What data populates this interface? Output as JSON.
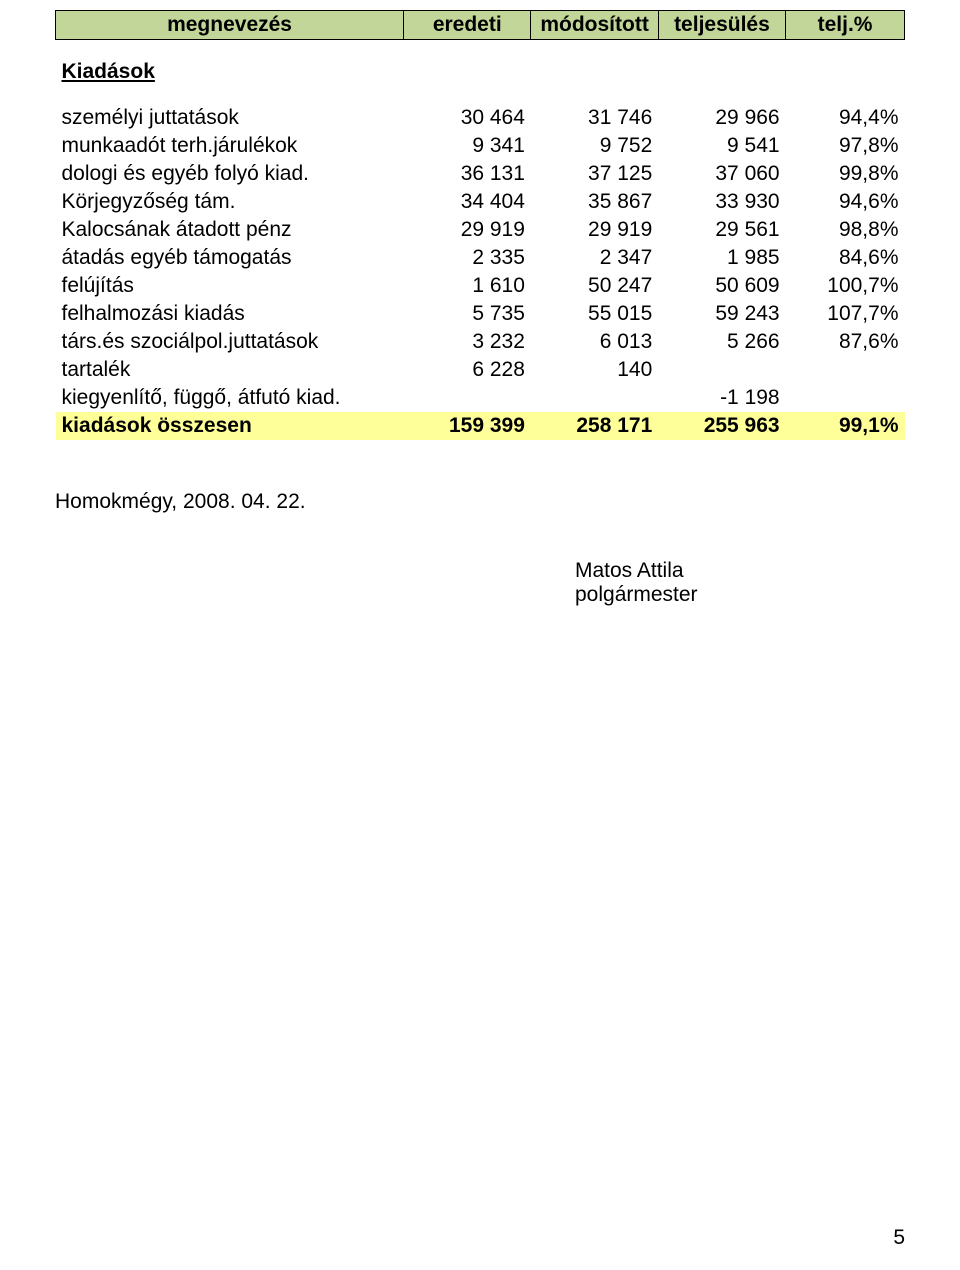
{
  "colors": {
    "header_bg": "#c2d69a",
    "summary_bg": "#ffff99",
    "border": "#000000",
    "text": "#000000",
    "page_bg": "#ffffff"
  },
  "typography": {
    "body_fontsize_pt": 16,
    "font_family": "Arial"
  },
  "table": {
    "headers": {
      "name": "megnevezés",
      "original": "eredeti",
      "modified": "módosított",
      "fulfilment": "teljesülés",
      "pct": "telj.%"
    },
    "section_title": "Kiadások",
    "rows": [
      {
        "label": "személyi juttatások",
        "c1": "30 464",
        "c2": "31 746",
        "c3": "29 966",
        "c4": "94,4%"
      },
      {
        "label": "munkaadót terh.járulékok",
        "c1": "9 341",
        "c2": "9 752",
        "c3": "9 541",
        "c4": "97,8%"
      },
      {
        "label": "dologi és egyéb folyó kiad.",
        "c1": "36 131",
        "c2": "37 125",
        "c3": "37 060",
        "c4": "99,8%"
      },
      {
        "label": "Körjegyzőség tám.",
        "c1": "34 404",
        "c2": "35 867",
        "c3": "33 930",
        "c4": "94,6%"
      },
      {
        "label": "Kalocsának átadott pénz",
        "c1": "29 919",
        "c2": "29 919",
        "c3": "29 561",
        "c4": "98,8%"
      },
      {
        "label": "átadás egyéb támogatás",
        "c1": "2 335",
        "c2": "2 347",
        "c3": "1 985",
        "c4": "84,6%"
      },
      {
        "label": "felújítás",
        "c1": "1 610",
        "c2": "50 247",
        "c3": "50 609",
        "c4": "100,7%"
      },
      {
        "label": "felhalmozási kiadás",
        "c1": "5 735",
        "c2": "55 015",
        "c3": "59 243",
        "c4": "107,7%"
      },
      {
        "label": "társ.és szociálpol.juttatások",
        "c1": "3 232",
        "c2": "6 013",
        "c3": "5 266",
        "c4": "87,6%"
      },
      {
        "label": "tartalék",
        "c1": "6 228",
        "c2": "140",
        "c3": "",
        "c4": ""
      },
      {
        "label": "kiegyenlítő, függő, átfutó kiad.",
        "c1": "",
        "c2": "",
        "c3": "-1 198",
        "c4": ""
      }
    ],
    "summary": {
      "label": "kiadások összesen",
      "c1": "159 399",
      "c2": "258 171",
      "c3": "255 963",
      "c4": "99,1%"
    }
  },
  "footer": {
    "date_line": "Homokmégy, 2008. 04. 22.",
    "sign_name": "Matos Attila",
    "sign_title": "polgármester"
  },
  "page_number": "5"
}
